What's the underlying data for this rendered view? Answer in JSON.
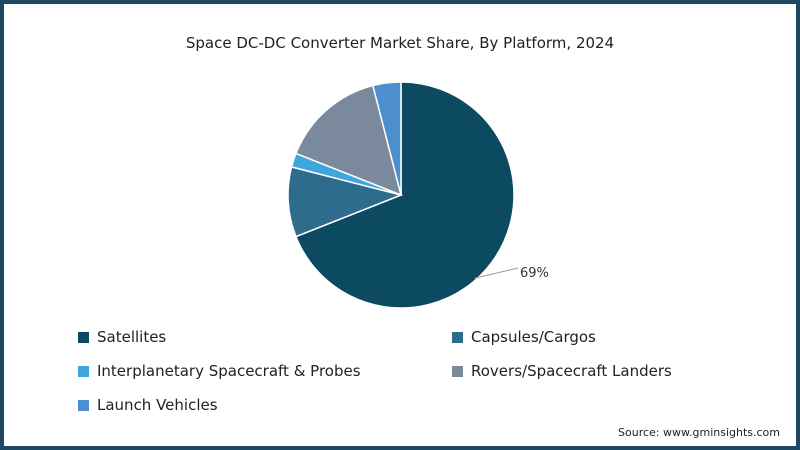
{
  "chart_data": {
    "type": "pie",
    "title": "Space DC-DC Converter Market Share, By Platform, 2024",
    "slices": [
      {
        "label": "Satellites",
        "value": 69,
        "color": "#0b4a60",
        "data_label": "69%"
      },
      {
        "label": "Capsules/Cargos",
        "value": 10,
        "color": "#2e6c8e"
      },
      {
        "label": "Interplanetary Spacecraft & Probes",
        "value": 2,
        "color": "#3fa6dd"
      },
      {
        "label": "Rovers/Spacecraft Landers",
        "value": 15,
        "color": "#7a8a9c"
      },
      {
        "label": "Launch Vehicles",
        "value": 4,
        "color": "#4d8fcc"
      }
    ],
    "legend_position": "bottom"
  },
  "source": "Source: www.gminsights.com"
}
